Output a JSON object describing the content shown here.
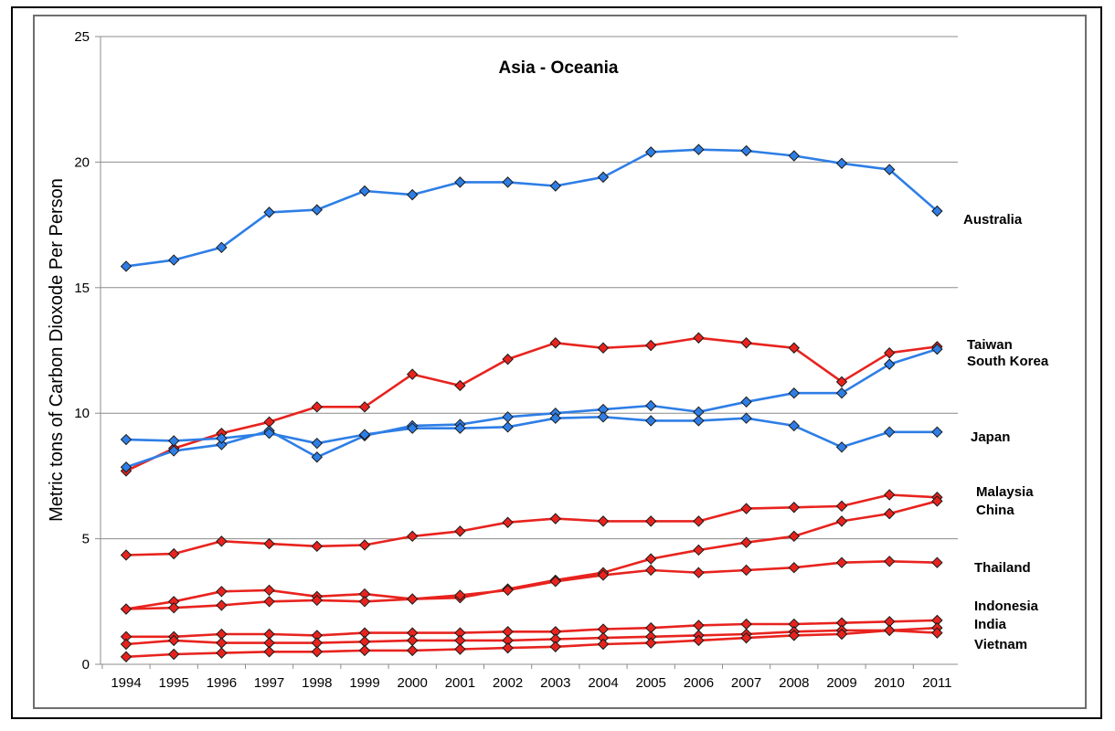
{
  "chart_data": {
    "type": "line",
    "title": "Asia - Oceania",
    "xlabel": "",
    "ylabel": "Metric tons of Carbon Dioxode Per Person",
    "ylim": [
      0,
      25
    ],
    "yticks": [
      "0",
      "5",
      "10",
      "15",
      "20",
      "25"
    ],
    "x": [
      "1994",
      "1995",
      "1996",
      "1997",
      "1998",
      "1999",
      "2000",
      "2001",
      "2002",
      "2003",
      "2004",
      "2005",
      "2006",
      "2007",
      "2008",
      "2009",
      "2010",
      "2011"
    ],
    "grid": "horizontal",
    "colors": {
      "blue": "#2e7ee6",
      "red": "#e8231e",
      "marker_edge": "#1a1a1a"
    },
    "series": [
      {
        "name": "Australia",
        "color": "#2e7ee6",
        "values": [
          15.85,
          16.1,
          16.6,
          18.0,
          18.1,
          18.85,
          18.7,
          19.2,
          19.2,
          19.05,
          19.4,
          20.4,
          20.5,
          20.45,
          20.25,
          19.95,
          19.7,
          18.05
        ]
      },
      {
        "name": "Taiwan",
        "color": "#e8231e",
        "values": [
          7.7,
          8.6,
          9.2,
          9.65,
          10.25,
          10.25,
          11.55,
          11.1,
          12.15,
          12.8,
          12.6,
          12.7,
          13.0,
          12.8,
          12.6,
          11.25,
          12.4,
          12.65
        ]
      },
      {
        "name": "South Korea",
        "color": "#2e7ee6",
        "values": [
          7.85,
          8.5,
          8.75,
          9.3,
          8.25,
          9.1,
          9.5,
          9.55,
          9.85,
          10.0,
          10.15,
          10.3,
          10.05,
          10.45,
          10.8,
          10.8,
          11.95,
          12.55
        ]
      },
      {
        "name": "Japan",
        "color": "#2e7ee6",
        "values": [
          8.95,
          8.9,
          9.0,
          9.2,
          8.8,
          9.15,
          9.4,
          9.4,
          9.45,
          9.8,
          9.85,
          9.7,
          9.7,
          9.8,
          9.5,
          8.65,
          9.25,
          9.25
        ]
      },
      {
        "name": "Malaysia",
        "color": "#e8231e",
        "values": [
          4.35,
          4.4,
          4.9,
          4.8,
          4.7,
          4.75,
          5.1,
          5.3,
          5.65,
          5.8,
          5.7,
          5.7,
          5.7,
          6.2,
          6.25,
          6.3,
          6.75,
          6.65
        ]
      },
      {
        "name": "China",
        "color": "#e8231e",
        "values": [
          2.2,
          2.5,
          2.9,
          2.95,
          2.7,
          2.8,
          2.6,
          2.65,
          3.0,
          3.35,
          3.65,
          4.2,
          4.55,
          4.85,
          5.1,
          5.7,
          6.0,
          6.5
        ]
      },
      {
        "name": "Thailand",
        "color": "#e8231e",
        "values": [
          2.2,
          2.25,
          2.35,
          2.5,
          2.55,
          2.5,
          2.6,
          2.75,
          2.95,
          3.3,
          3.55,
          3.75,
          3.65,
          3.75,
          3.85,
          4.05,
          4.1,
          4.05
        ]
      },
      {
        "name": "Indonesia",
        "color": "#e8231e",
        "values": [
          1.1,
          1.1,
          1.2,
          1.2,
          1.15,
          1.25,
          1.25,
          1.25,
          1.3,
          1.3,
          1.4,
          1.45,
          1.55,
          1.6,
          1.6,
          1.65,
          1.7,
          1.75
        ]
      },
      {
        "name": "India",
        "color": "#e8231e",
        "values": [
          0.8,
          0.95,
          0.85,
          0.85,
          0.85,
          0.9,
          0.95,
          0.95,
          0.95,
          1.0,
          1.05,
          1.1,
          1.15,
          1.2,
          1.3,
          1.35,
          1.35,
          1.45
        ]
      },
      {
        "name": "Vietnam",
        "color": "#e8231e",
        "values": [
          0.3,
          0.4,
          0.45,
          0.5,
          0.5,
          0.55,
          0.55,
          0.6,
          0.65,
          0.7,
          0.8,
          0.85,
          0.95,
          1.05,
          1.15,
          1.2,
          1.35,
          1.25
        ]
      }
    ],
    "series_labels": [
      {
        "text": "Australia",
        "series": "Australia"
      },
      {
        "text": "Taiwan",
        "series": "Taiwan"
      },
      {
        "text": "South Korea",
        "series": "South Korea"
      },
      {
        "text": "Japan",
        "series": "Japan"
      },
      {
        "text": "Malaysia",
        "series": "Malaysia"
      },
      {
        "text": "China",
        "series": "China"
      },
      {
        "text": "Thailand",
        "series": "Thailand"
      },
      {
        "text": "Indonesia",
        "series": "Indonesia"
      },
      {
        "text": "India",
        "series": "India"
      },
      {
        "text": "Vietnam",
        "series": "Vietnam"
      }
    ]
  }
}
